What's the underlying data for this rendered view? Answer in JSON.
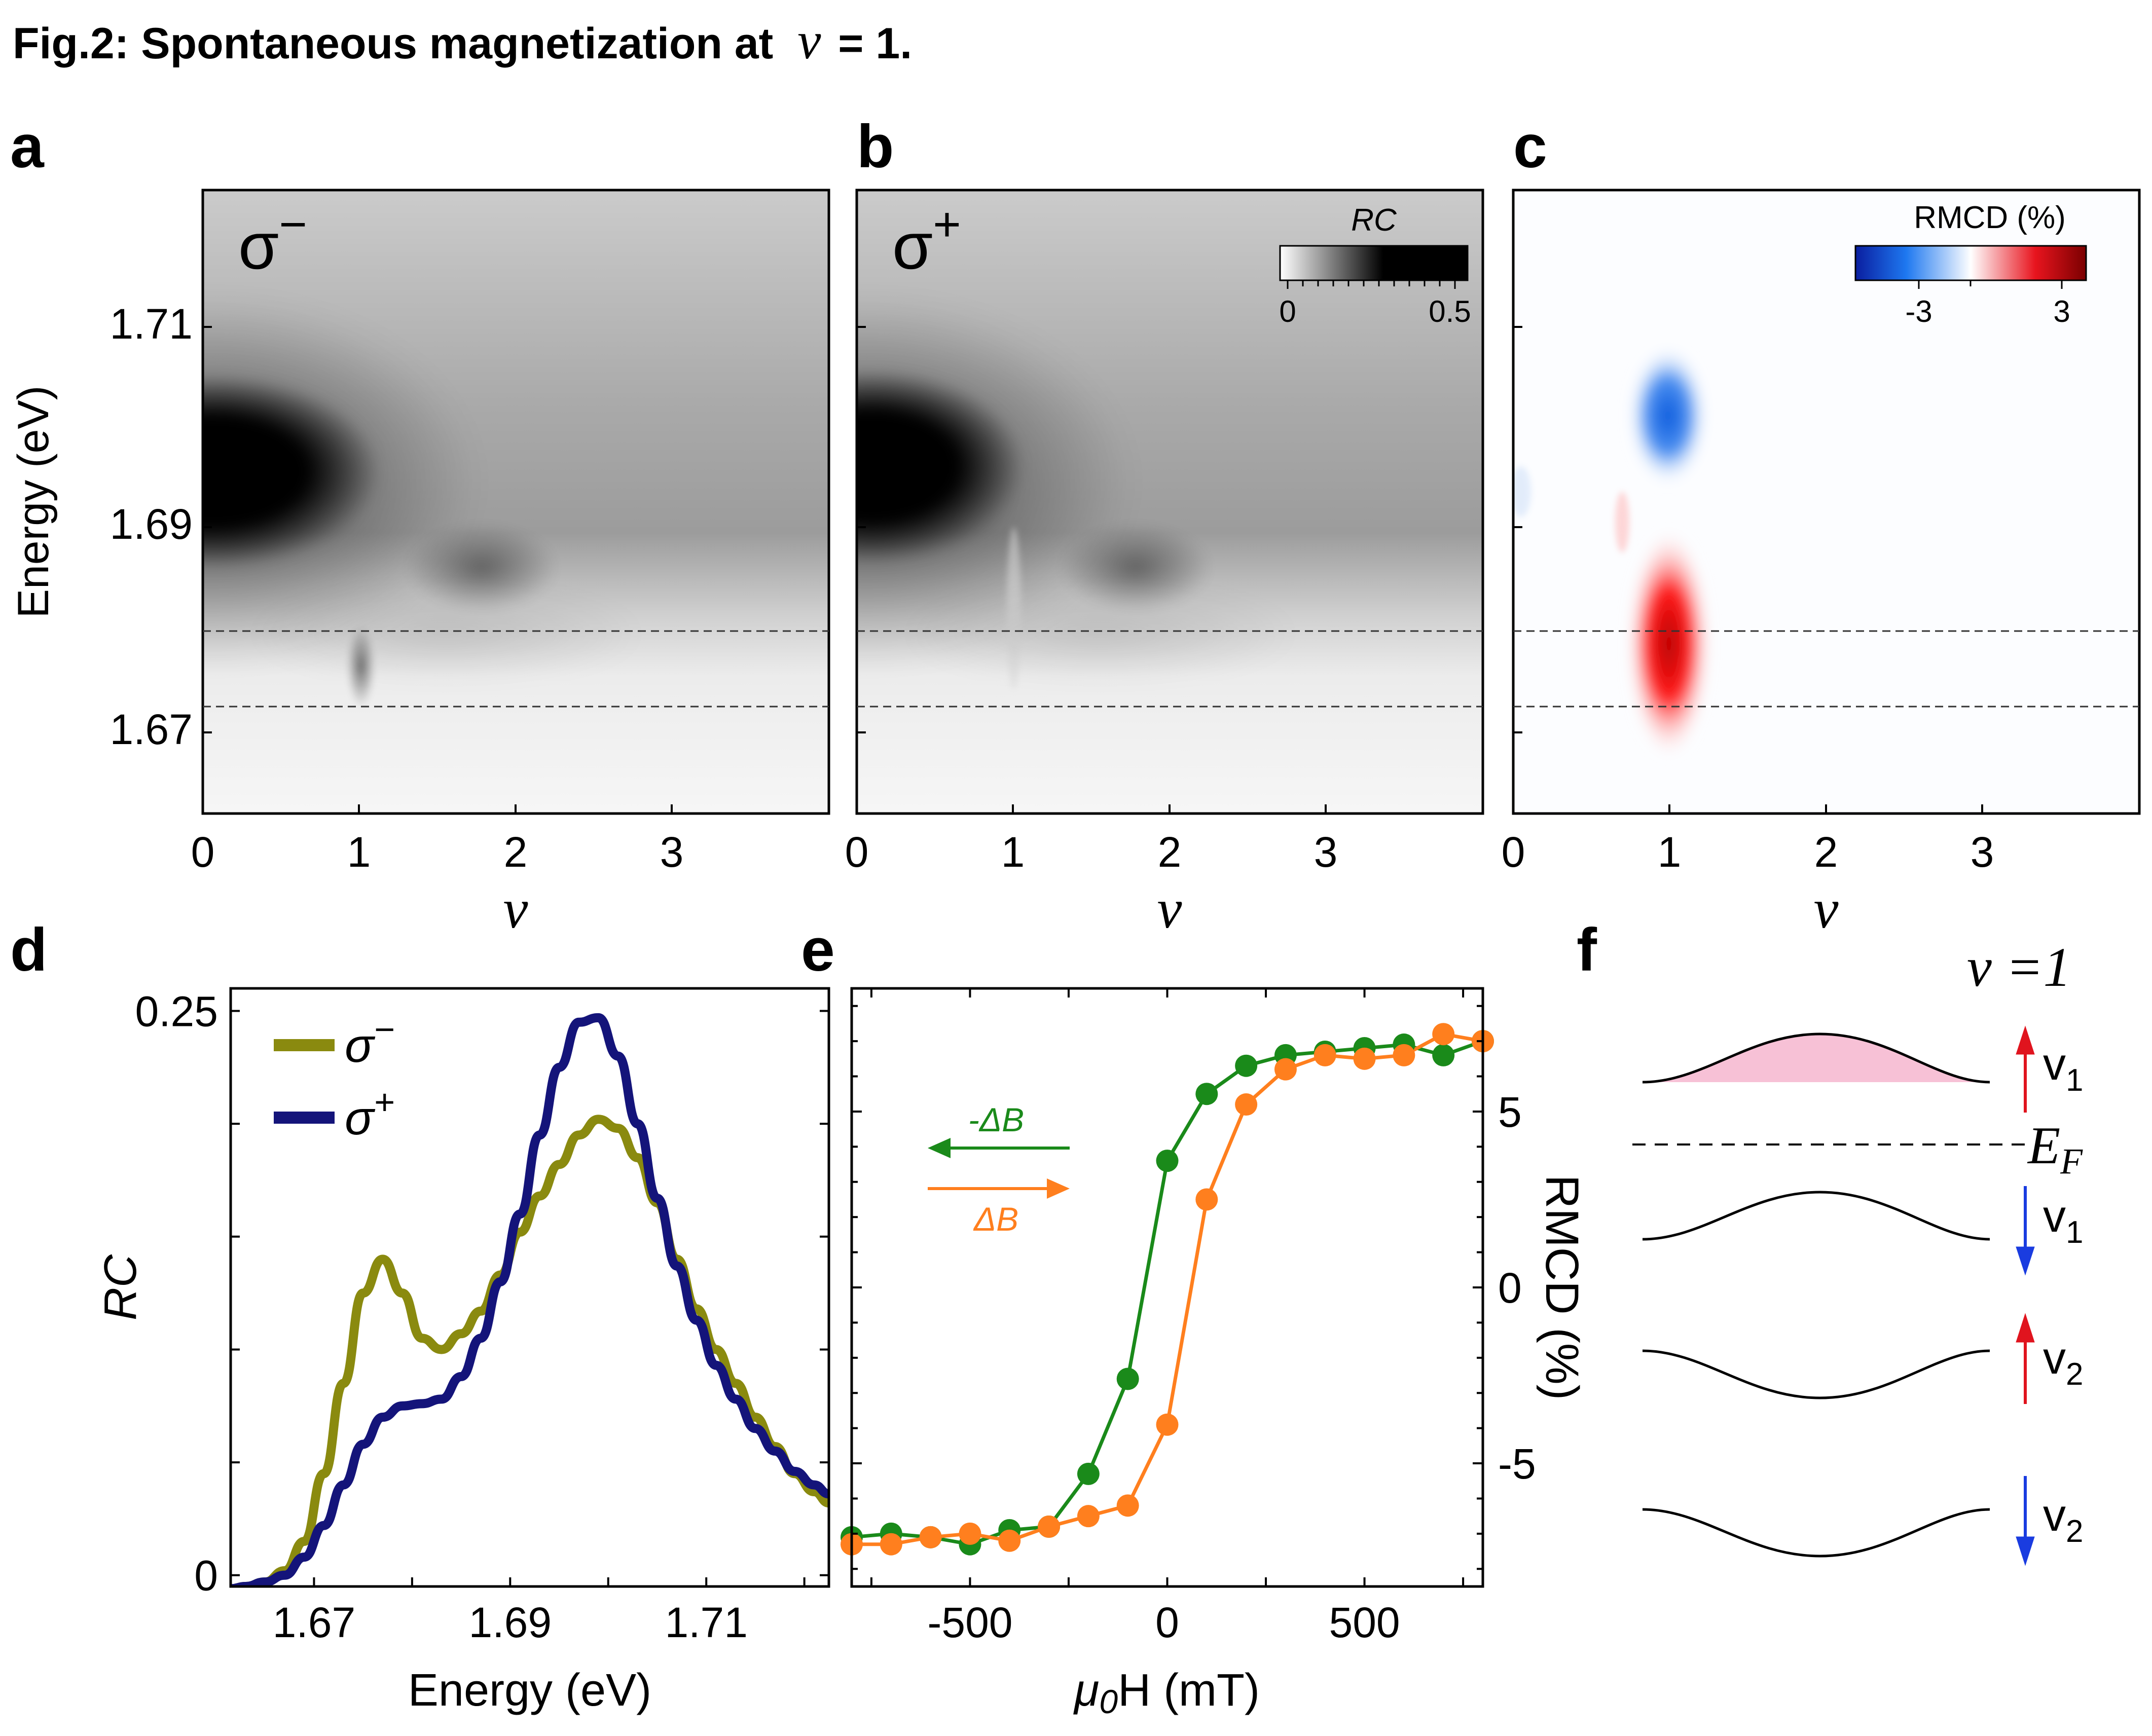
{
  "figure": {
    "title_prefix": "Fig.2:  Spontaneous magnetization at",
    "title_nu": "ν",
    "title_suffix": "= 1."
  },
  "colors": {
    "sigma_minus": "#8a8a0f",
    "sigma_plus": "#14147a",
    "sweep_down": "#1a8a1a",
    "sweep_up": "#ff7f1e",
    "up_arrow": "#e0141e",
    "down_arrow": "#1a3ce0",
    "band_fill": "#f7c1d6"
  },
  "panels": {
    "a": {
      "letter": "a",
      "label": "σ",
      "label_sup": "−",
      "ylabel": "Energy (eV)",
      "yticks": [
        "1.71",
        "1.69",
        "1.67"
      ],
      "xticks": [
        "0",
        "1",
        "2",
        "3"
      ],
      "xlabel": "ν"
    },
    "b": {
      "letter": "b",
      "label": "σ",
      "label_sup": "+",
      "xticks": [
        "0",
        "1",
        "2",
        "3"
      ],
      "xlabel": "ν",
      "colorbar": {
        "title": "RC",
        "min_label": "0",
        "max_label": "0.5",
        "range": [
          0,
          0.5
        ]
      }
    },
    "c": {
      "letter": "c",
      "xticks": [
        "0",
        "1",
        "2",
        "3"
      ],
      "xlabel": "ν",
      "colorbar": {
        "title": "RMCD (%)",
        "min_label": "-3",
        "max_label": "3",
        "range": [
          -3,
          3
        ]
      }
    },
    "d": {
      "letter": "d",
      "ylabel": "RC",
      "xlabel": "Energy (eV)",
      "yticks": [
        "0.25",
        "0"
      ],
      "xticks": [
        "1.67",
        "1.69",
        "1.71"
      ],
      "legend": [
        {
          "label": "σ",
          "sup": "−"
        },
        {
          "label": "σ",
          "sup": "+"
        }
      ]
    },
    "e": {
      "letter": "e",
      "ylabel": "RMCD (%)",
      "xlabel_mu": "μ",
      "xlabel_sub": "0",
      "xlabel_rest": "H (mT)",
      "xticks": [
        "-500",
        "0",
        "500"
      ],
      "yticks": [
        "5",
        "0",
        "-5"
      ],
      "sweep_down_label": "-ΔB",
      "sweep_up_label": "ΔB"
    },
    "f": {
      "letter": "f",
      "filling_label": "ν =1",
      "fermi_label": "E",
      "fermi_sub": "F",
      "bands": [
        {
          "label": "v",
          "sub": "1",
          "spin": "up"
        },
        {
          "label": "v",
          "sub": "1",
          "spin": "down"
        },
        {
          "label": "v",
          "sub": "2",
          "spin": "up"
        },
        {
          "label": "v",
          "sub": "2",
          "spin": "down"
        }
      ]
    }
  },
  "chart_data": [
    {
      "panel": "a",
      "type": "heatmap",
      "title": "σ−",
      "xlabel": "ν",
      "ylabel": "Energy (eV)",
      "xlim": [
        0,
        4.0
      ],
      "ylim": [
        1.662,
        1.722
      ],
      "value": "RC",
      "zlim": [
        0,
        0.5
      ],
      "features": [
        {
          "name": "main exciton",
          "nu": 0.1,
          "energy": 1.694,
          "rc": 0.5
        },
        {
          "name": "secondary",
          "nu": 1.85,
          "energy": 1.687,
          "rc": 0.3
        },
        {
          "name": "nu=1 dip",
          "nu": 1.0,
          "energy": 1.677,
          "rc": 0.28
        }
      ],
      "dashed_energies": [
        1.68,
        1.673
      ]
    },
    {
      "panel": "b",
      "type": "heatmap",
      "title": "σ+",
      "xlabel": "ν",
      "xlim": [
        0,
        4.0
      ],
      "ylim": [
        1.662,
        1.722
      ],
      "value": "RC",
      "zlim": [
        0,
        0.5
      ],
      "features": [
        {
          "name": "main exciton",
          "nu": 0.1,
          "energy": 1.695,
          "rc": 0.5
        },
        {
          "name": "secondary",
          "nu": 1.85,
          "energy": 1.687,
          "rc": 0.3
        },
        {
          "name": "nu=1 line",
          "nu": 1.0,
          "energy": 1.68,
          "rc": 0.12
        }
      ],
      "dashed_energies": [
        1.68,
        1.673
      ]
    },
    {
      "panel": "c",
      "type": "heatmap",
      "xlabel": "ν",
      "xlim": [
        0,
        4.0
      ],
      "ylim": [
        1.662,
        1.722
      ],
      "value": "RMCD (%)",
      "zlim": [
        -3,
        3
      ],
      "features": [
        {
          "name": "negative lobe",
          "nu": 0.98,
          "energy": 1.699,
          "rmcd": -2.5
        },
        {
          "name": "positive lobe",
          "nu": 0.98,
          "energy": 1.679,
          "rmcd": 3.0
        }
      ],
      "dashed_energies": [
        1.68,
        1.673
      ]
    },
    {
      "panel": "d",
      "type": "line",
      "xlabel": "Energy (eV)",
      "ylabel": "RC",
      "xlim": [
        1.6615,
        1.7225
      ],
      "ylim": [
        -0.005,
        0.26
      ],
      "series": [
        {
          "name": "σ−",
          "x": [
            1.6615,
            1.663,
            1.665,
            1.667,
            1.669,
            1.671,
            1.673,
            1.675,
            1.677,
            1.679,
            1.681,
            1.683,
            1.685,
            1.687,
            1.689,
            1.691,
            1.693,
            1.695,
            1.697,
            1.699,
            1.701,
            1.703,
            1.705,
            1.707,
            1.709,
            1.711,
            1.713,
            1.715,
            1.717,
            1.719,
            1.721,
            1.7225
          ],
          "y": [
            -0.006,
            -0.005,
            -0.003,
            0.002,
            0.015,
            0.045,
            0.085,
            0.125,
            0.14,
            0.125,
            0.105,
            0.1,
            0.107,
            0.117,
            0.133,
            0.152,
            0.168,
            0.182,
            0.195,
            0.202,
            0.198,
            0.185,
            0.165,
            0.14,
            0.118,
            0.1,
            0.085,
            0.07,
            0.057,
            0.045,
            0.037,
            0.032
          ]
        },
        {
          "name": "σ+",
          "x": [
            1.6615,
            1.663,
            1.665,
            1.667,
            1.669,
            1.671,
            1.673,
            1.675,
            1.677,
            1.679,
            1.681,
            1.683,
            1.685,
            1.687,
            1.689,
            1.691,
            1.693,
            1.695,
            1.697,
            1.699,
            1.701,
            1.703,
            1.705,
            1.707,
            1.709,
            1.711,
            1.713,
            1.715,
            1.717,
            1.719,
            1.721,
            1.7225
          ],
          "y": [
            -0.006,
            -0.005,
            -0.003,
            0.0,
            0.008,
            0.022,
            0.04,
            0.058,
            0.07,
            0.075,
            0.076,
            0.078,
            0.088,
            0.105,
            0.13,
            0.16,
            0.195,
            0.225,
            0.245,
            0.247,
            0.23,
            0.2,
            0.167,
            0.137,
            0.113,
            0.093,
            0.078,
            0.065,
            0.055,
            0.046,
            0.04,
            0.036
          ]
        }
      ]
    },
    {
      "panel": "e",
      "type": "scatter",
      "xlabel": "μ0H (mT)",
      "ylabel": "RMCD (%)",
      "xlim": [
        -800,
        800
      ],
      "ylim": [
        -8.5,
        8.5
      ],
      "series": [
        {
          "name": "-ΔB",
          "x": [
            800,
            700,
            600,
            500,
            400,
            300,
            200,
            100,
            0,
            -100,
            -200,
            -300,
            -400,
            -500,
            -600,
            -700,
            -800
          ],
          "y": [
            7.0,
            6.6,
            6.9,
            6.8,
            6.7,
            6.6,
            6.3,
            5.5,
            3.6,
            -2.6,
            -5.3,
            -6.8,
            -6.9,
            -7.3,
            -7.1,
            -7.0,
            -7.1
          ]
        },
        {
          "name": "ΔB",
          "x": [
            -800,
            -700,
            -600,
            -500,
            -400,
            -300,
            -200,
            -100,
            0,
            100,
            200,
            300,
            400,
            500,
            600,
            700,
            800
          ],
          "y": [
            -7.3,
            -7.3,
            -7.1,
            -7.0,
            -7.2,
            -6.8,
            -6.5,
            -6.2,
            -3.9,
            2.5,
            5.2,
            6.2,
            6.6,
            6.5,
            6.6,
            7.2,
            7.0
          ]
        }
      ]
    }
  ]
}
